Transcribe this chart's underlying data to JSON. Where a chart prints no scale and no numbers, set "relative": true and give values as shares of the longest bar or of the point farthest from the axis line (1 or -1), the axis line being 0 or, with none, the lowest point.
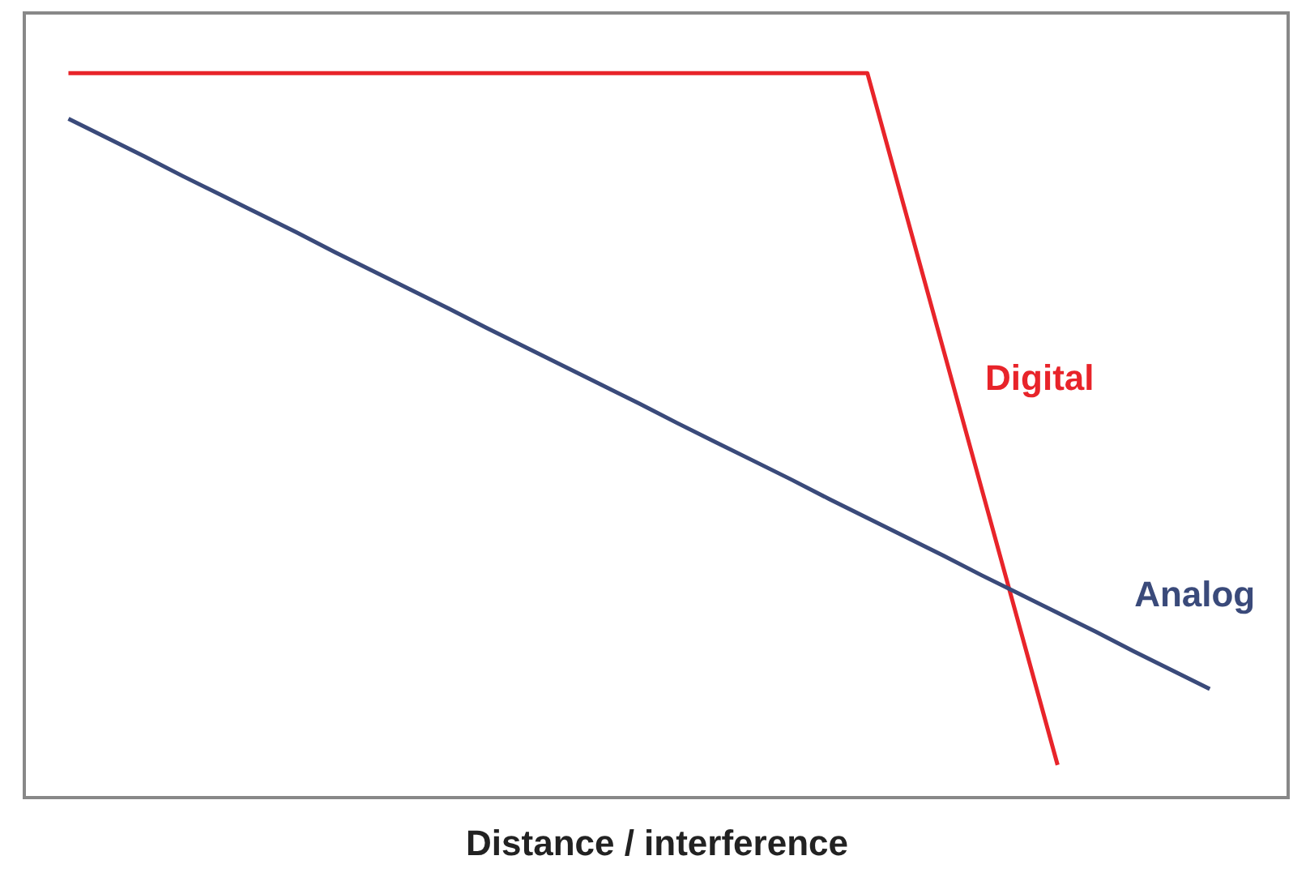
{
  "chart_data": {
    "type": "line",
    "relative": true,
    "xlabel": "Distance / interference",
    "marker": "none",
    "line_style": "solid",
    "categories": [
      null,
      null,
      null,
      null,
      null,
      null,
      null,
      null,
      null,
      null,
      null,
      null,
      null,
      null,
      null,
      null,
      null,
      null,
      null,
      null,
      null,
      null,
      null,
      null,
      null,
      null,
      null,
      null,
      null,
      null,
      null
    ],
    "series": [
      {
        "name": "Digital",
        "color": "#e8242a",
        "values": [
          1,
          1,
          1,
          1,
          1,
          1,
          1,
          1,
          1,
          1,
          1,
          1,
          1,
          1,
          1,
          1,
          1,
          1,
          1,
          1,
          1,
          1,
          0.809,
          0.618,
          0.427,
          0.236,
          0.045,
          null,
          null,
          null,
          null
        ]
      },
      {
        "name": "Analog",
        "color": "#3a4a7a",
        "values": [
          0.937,
          0.911,
          0.885,
          0.858,
          0.832,
          0.806,
          0.78,
          0.753,
          0.727,
          0.701,
          0.675,
          0.648,
          0.622,
          0.596,
          0.57,
          0.544,
          0.517,
          0.491,
          0.465,
          0.439,
          0.412,
          0.386,
          0.36,
          0.334,
          0.307,
          0.281,
          0.255,
          0.229,
          0.202,
          0.176,
          0.15
        ]
      }
    ]
  }
}
